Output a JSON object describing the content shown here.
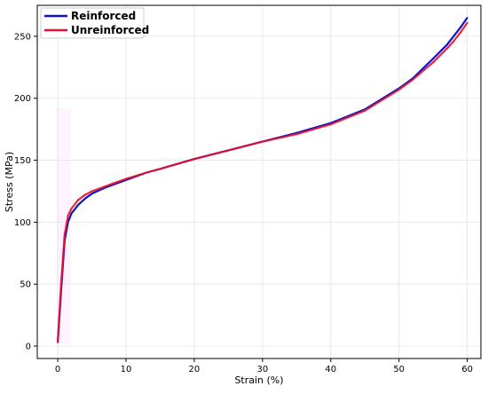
{
  "chart_data": {
    "type": "line",
    "title": "",
    "xlabel": "Strain (%)",
    "ylabel": "Stress (MPa)",
    "xlim": [
      -3,
      62
    ],
    "ylim": [
      -10,
      275
    ],
    "xticks": [
      0,
      10,
      20,
      30,
      40,
      50,
      60
    ],
    "yticks": [
      0,
      50,
      100,
      150,
      200,
      250
    ],
    "grid": true,
    "legend_position": "top-left",
    "series": [
      {
        "name": "Reinforced",
        "color": "#0a14c8",
        "x": [
          0,
          0.5,
          1,
          1.5,
          2,
          3,
          4,
          5,
          7,
          10,
          13,
          15,
          20,
          25,
          30,
          35,
          40,
          45,
          50,
          52,
          55,
          57,
          58,
          59,
          60
        ],
        "y": [
          3,
          45,
          85,
          100,
          107,
          114,
          119,
          123,
          128,
          134,
          140,
          143,
          151,
          158,
          165,
          172,
          180,
          191,
          208,
          216,
          232,
          243,
          250,
          257,
          265
        ]
      },
      {
        "name": "Unreinforced",
        "color": "#e8102c",
        "x": [
          0,
          0.5,
          1,
          1.5,
          2,
          3,
          4,
          5,
          7,
          10,
          13,
          15,
          20,
          25,
          30,
          35,
          40,
          45,
          50,
          52,
          55,
          57,
          58,
          59,
          60
        ],
        "y": [
          3,
          50,
          90,
          105,
          111,
          118,
          122,
          125,
          129,
          135,
          140,
          143,
          151,
          158,
          165,
          171,
          179,
          190,
          207,
          215,
          229,
          240,
          246,
          253,
          261
        ]
      }
    ]
  }
}
